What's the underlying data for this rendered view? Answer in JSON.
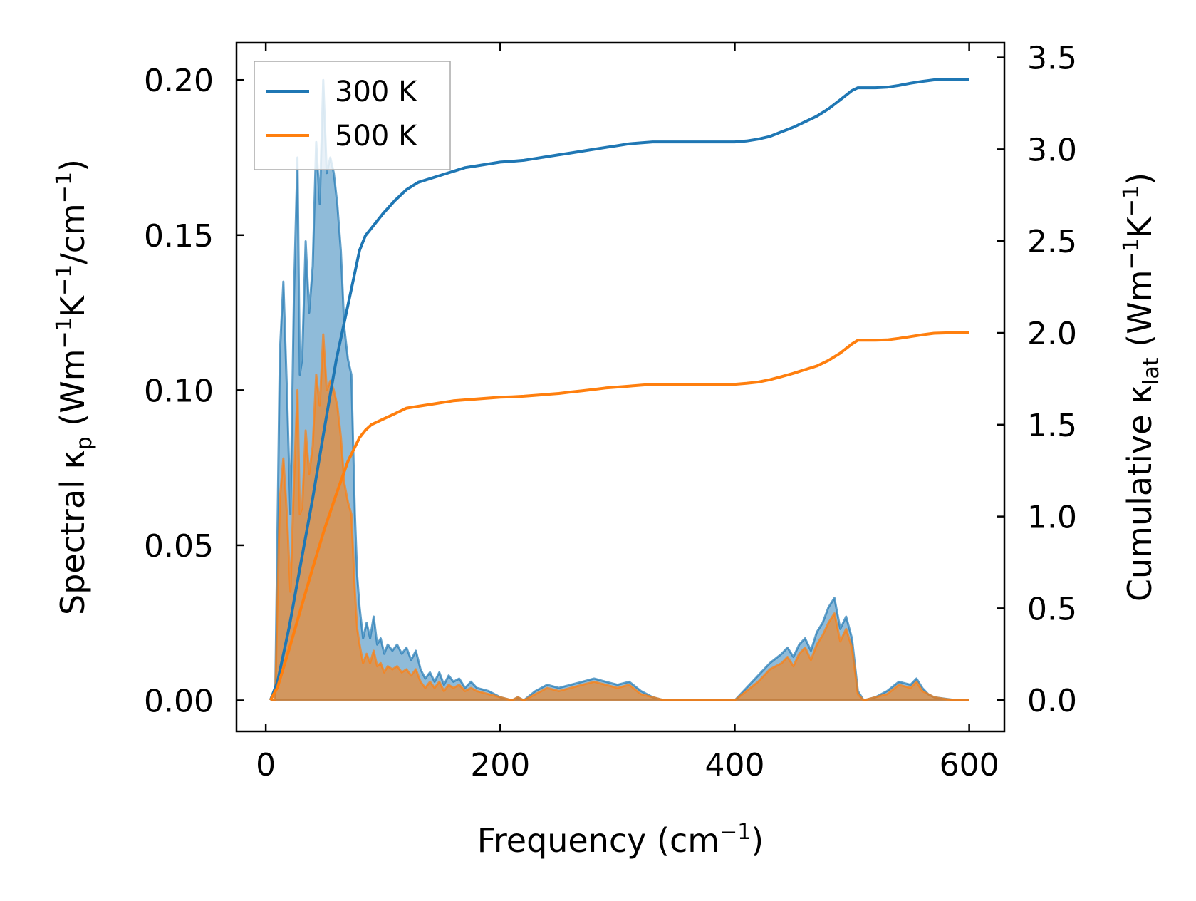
{
  "chart_data": {
    "type": "line",
    "description_axes": "dual y-axis: left spectral, right cumulative",
    "xlabel": "Frequency (cm",
    "xlabel_sup": "−1",
    "xlabel_end": ")",
    "ylabel_left": {
      "prefix": "Spectral κ",
      "sub": "p",
      "unit_a": " (Wm",
      "sup1": "−1",
      "unit_b": "K",
      "sup2": "−1",
      "unit_c": "/cm",
      "sup3": "−1",
      "unit_d": ")"
    },
    "ylabel_right": {
      "prefix": "Cumulative κ",
      "sub": "lat",
      "unit_a": " (Wm",
      "sup1": "−1",
      "unit_b": "K",
      "sup2": "−1",
      "unit_c": ")"
    },
    "xlim": [
      -25,
      630
    ],
    "ylim_left": [
      -0.01,
      0.212
    ],
    "ylim_right": [
      -0.17,
      3.58
    ],
    "x_ticks": [
      0,
      200,
      400,
      600
    ],
    "x_tick_labels": [
      "0",
      "200",
      "400",
      "600"
    ],
    "y_left_ticks": [
      0.0,
      0.05,
      0.1,
      0.15,
      0.2
    ],
    "y_left_tick_labels": [
      "0.00",
      "0.05",
      "0.10",
      "0.15",
      "0.20"
    ],
    "y_right_ticks": [
      0.0,
      0.5,
      1.0,
      1.5,
      2.0,
      2.5,
      3.0,
      3.5
    ],
    "y_right_tick_labels": [
      "0.0",
      "0.5",
      "1.0",
      "1.5",
      "2.0",
      "2.5",
      "3.0",
      "3.5"
    ],
    "legend": {
      "placement": "top-left",
      "entries": [
        "300 K",
        "500 K"
      ]
    },
    "series": [
      {
        "name": "300 K",
        "color": "#1f77b4",
        "fill_color": "#1f77b4",
        "spectral": {
          "x": [
            4,
            8,
            12,
            15,
            18,
            21,
            24,
            27,
            29,
            31,
            34,
            37,
            40,
            43,
            46,
            49,
            52,
            55,
            58,
            61,
            64,
            67,
            70,
            73,
            76,
            78,
            80,
            83,
            86,
            89,
            92,
            95,
            98,
            101,
            104,
            108,
            112,
            116,
            120,
            124,
            128,
            132,
            136,
            140,
            144,
            148,
            152,
            156,
            160,
            165,
            170,
            175,
            180,
            190,
            200,
            210,
            215,
            220,
            230,
            240,
            250,
            260,
            270,
            280,
            290,
            300,
            310,
            320,
            330,
            340,
            350,
            380,
            400,
            410,
            420,
            430,
            440,
            445,
            450,
            455,
            460,
            465,
            470,
            475,
            480,
            485,
            490,
            495,
            500,
            505,
            510,
            520,
            530,
            540,
            550,
            555,
            560,
            565,
            570,
            580,
            590,
            600
          ],
          "y": [
            0.0,
            0.0,
            0.112,
            0.135,
            0.1,
            0.06,
            0.13,
            0.175,
            0.105,
            0.11,
            0.148,
            0.125,
            0.14,
            0.18,
            0.16,
            0.2,
            0.17,
            0.175,
            0.17,
            0.16,
            0.145,
            0.12,
            0.11,
            0.105,
            0.06,
            0.04,
            0.03,
            0.02,
            0.025,
            0.02,
            0.027,
            0.018,
            0.02,
            0.015,
            0.018,
            0.016,
            0.018,
            0.015,
            0.017,
            0.013,
            0.016,
            0.01,
            0.007,
            0.009,
            0.006,
            0.009,
            0.005,
            0.008,
            0.006,
            0.007,
            0.004,
            0.006,
            0.004,
            0.003,
            0.001,
            0.0,
            0.001,
            0.0,
            0.003,
            0.005,
            0.004,
            0.005,
            0.006,
            0.007,
            0.006,
            0.005,
            0.006,
            0.003,
            0.001,
            0.0,
            0.0,
            0.0,
            0.0,
            0.004,
            0.008,
            0.012,
            0.015,
            0.017,
            0.014,
            0.018,
            0.02,
            0.016,
            0.022,
            0.025,
            0.03,
            0.033,
            0.023,
            0.027,
            0.02,
            0.003,
            0.0,
            0.001,
            0.003,
            0.006,
            0.005,
            0.007,
            0.004,
            0.002,
            0.001,
            0.0005,
            0.0,
            0.0
          ]
        },
        "cumulative": {
          "x": [
            4,
            10,
            20,
            30,
            40,
            50,
            60,
            70,
            80,
            85,
            90,
            100,
            110,
            120,
            130,
            140,
            150,
            160,
            170,
            180,
            190,
            200,
            210,
            220,
            230,
            240,
            250,
            260,
            270,
            280,
            290,
            300,
            310,
            320,
            330,
            340,
            350,
            360,
            370,
            380,
            390,
            400,
            410,
            420,
            430,
            440,
            450,
            460,
            470,
            480,
            490,
            500,
            505,
            510,
            520,
            530,
            540,
            550,
            560,
            570,
            580,
            590,
            600
          ],
          "y": [
            0.0,
            0.1,
            0.4,
            0.75,
            1.1,
            1.48,
            1.85,
            2.15,
            2.45,
            2.53,
            2.57,
            2.65,
            2.72,
            2.78,
            2.82,
            2.84,
            2.86,
            2.88,
            2.9,
            2.91,
            2.92,
            2.93,
            2.935,
            2.94,
            2.95,
            2.96,
            2.97,
            2.98,
            2.99,
            3.0,
            3.01,
            3.02,
            3.03,
            3.035,
            3.04,
            3.04,
            3.04,
            3.04,
            3.04,
            3.04,
            3.04,
            3.04,
            3.045,
            3.055,
            3.07,
            3.095,
            3.12,
            3.15,
            3.18,
            3.22,
            3.27,
            3.32,
            3.335,
            3.335,
            3.335,
            3.338,
            3.348,
            3.36,
            3.37,
            3.378,
            3.38,
            3.38,
            3.38
          ]
        }
      },
      {
        "name": "500 K",
        "color": "#ff7f0e",
        "fill_color": "#ff7f0e",
        "spectral": {
          "x": [
            4,
            8,
            12,
            15,
            18,
            21,
            24,
            27,
            29,
            31,
            34,
            37,
            40,
            43,
            46,
            49,
            52,
            55,
            58,
            61,
            64,
            67,
            70,
            73,
            76,
            78,
            80,
            83,
            86,
            89,
            92,
            95,
            98,
            101,
            104,
            108,
            112,
            116,
            120,
            124,
            128,
            132,
            136,
            140,
            144,
            148,
            152,
            156,
            160,
            165,
            170,
            175,
            180,
            190,
            200,
            210,
            215,
            220,
            230,
            240,
            250,
            260,
            270,
            280,
            290,
            300,
            310,
            320,
            330,
            340,
            350,
            380,
            400,
            410,
            420,
            430,
            440,
            445,
            450,
            455,
            460,
            465,
            470,
            475,
            480,
            485,
            490,
            495,
            500,
            505,
            510,
            520,
            530,
            540,
            550,
            555,
            560,
            565,
            570,
            580,
            590,
            600
          ],
          "y": [
            0.0,
            0.0,
            0.065,
            0.078,
            0.06,
            0.035,
            0.07,
            0.1,
            0.06,
            0.062,
            0.087,
            0.073,
            0.082,
            0.105,
            0.095,
            0.118,
            0.1,
            0.103,
            0.1,
            0.095,
            0.085,
            0.07,
            0.064,
            0.06,
            0.035,
            0.023,
            0.018,
            0.012,
            0.015,
            0.012,
            0.016,
            0.011,
            0.012,
            0.009,
            0.011,
            0.01,
            0.011,
            0.009,
            0.01,
            0.008,
            0.01,
            0.006,
            0.004,
            0.006,
            0.004,
            0.006,
            0.003,
            0.005,
            0.004,
            0.005,
            0.003,
            0.004,
            0.003,
            0.002,
            0.001,
            0.0,
            0.001,
            0.0,
            0.002,
            0.004,
            0.003,
            0.004,
            0.005,
            0.006,
            0.005,
            0.004,
            0.005,
            0.002,
            0.001,
            0.0,
            0.0,
            0.0,
            0.0,
            0.003,
            0.006,
            0.01,
            0.012,
            0.014,
            0.011,
            0.015,
            0.017,
            0.013,
            0.018,
            0.021,
            0.025,
            0.028,
            0.019,
            0.023,
            0.017,
            0.002,
            0.0,
            0.001,
            0.002,
            0.005,
            0.004,
            0.006,
            0.003,
            0.002,
            0.001,
            0.0004,
            0.0,
            0.0
          ]
        },
        "cumulative": {
          "x": [
            4,
            10,
            20,
            30,
            40,
            50,
            60,
            70,
            80,
            85,
            90,
            100,
            110,
            120,
            130,
            140,
            150,
            160,
            170,
            180,
            190,
            200,
            210,
            220,
            230,
            240,
            250,
            260,
            270,
            280,
            290,
            300,
            310,
            320,
            330,
            340,
            350,
            360,
            370,
            380,
            390,
            400,
            410,
            420,
            430,
            440,
            450,
            460,
            470,
            480,
            490,
            500,
            505,
            510,
            520,
            530,
            540,
            550,
            560,
            570,
            580,
            590,
            600
          ],
          "y": [
            0.0,
            0.07,
            0.28,
            0.5,
            0.72,
            0.93,
            1.12,
            1.3,
            1.43,
            1.47,
            1.5,
            1.53,
            1.56,
            1.59,
            1.6,
            1.61,
            1.62,
            1.63,
            1.635,
            1.64,
            1.645,
            1.65,
            1.652,
            1.655,
            1.66,
            1.665,
            1.67,
            1.678,
            1.685,
            1.692,
            1.7,
            1.705,
            1.71,
            1.715,
            1.72,
            1.72,
            1.72,
            1.72,
            1.72,
            1.72,
            1.72,
            1.72,
            1.725,
            1.732,
            1.745,
            1.762,
            1.78,
            1.8,
            1.82,
            1.85,
            1.89,
            1.94,
            1.96,
            1.96,
            1.96,
            1.962,
            1.97,
            1.98,
            1.99,
            1.998,
            2.0,
            2.0,
            2.0
          ]
        }
      }
    ]
  }
}
